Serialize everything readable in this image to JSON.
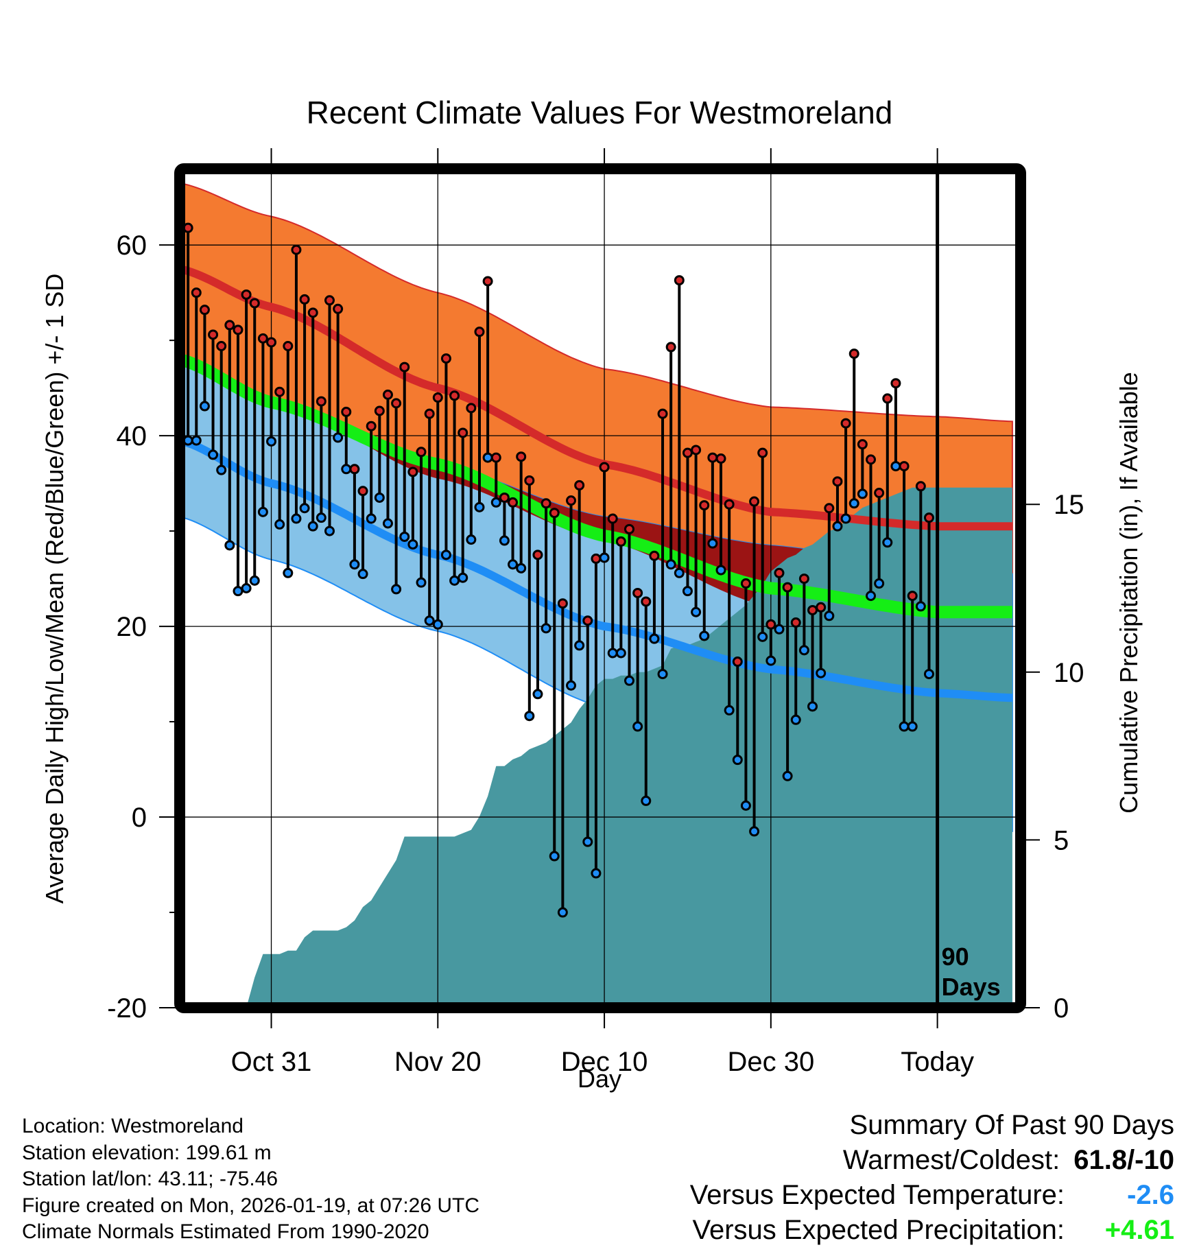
{
  "chart_data": {
    "type": "line",
    "title": "Recent Climate Values For Westmoreland",
    "xlabel": "Day",
    "ylabel_left": "Average Daily High/Low/Mean (Red/Blue/Green) +/- 1 SD",
    "ylabel_right": "Cumulative Precipitation (in), If Available",
    "xlim": [
      -91,
      10
    ],
    "ylim": [
      -20,
      68
    ],
    "ylim_right": [
      0,
      25
    ],
    "x_ticks": [
      {
        "x": -80,
        "label": "Oct 31"
      },
      {
        "x": -60,
        "label": "Nov 20"
      },
      {
        "x": -40,
        "label": "Dec 10"
      },
      {
        "x": -20,
        "label": "Dec 30"
      },
      {
        "x": 0,
        "label": "Today"
      }
    ],
    "y_ticks_left": [
      -20,
      0,
      20,
      40,
      60
    ],
    "y_ticks_right": [
      0,
      5,
      10,
      15
    ],
    "today_marker": {
      "x": 0,
      "label_line1": "90",
      "label_line2": "Days"
    },
    "normals": {
      "x": [
        -91,
        -80,
        -60,
        -40,
        -20,
        0,
        9
      ],
      "high_mean": [
        57.5,
        53.5,
        45.0,
        37.0,
        32.0,
        30.5,
        30.5
      ],
      "high_upper": [
        66.5,
        63.0,
        55.0,
        47.0,
        43.0,
        42.0,
        41.5
      ],
      "high_lower": [
        48.0,
        44.0,
        35.5,
        29.0,
        22.0,
        19.5,
        20.0
      ],
      "low_mean": [
        39.5,
        35.0,
        27.5,
        20.0,
        15.5,
        13.0,
        12.5
      ],
      "low_upper": [
        47.5,
        43.0,
        37.0,
        31.5,
        28.5,
        26.0,
        25.5
      ],
      "low_lower": [
        31.5,
        27.0,
        19.5,
        11.5,
        4.0,
        -1.0,
        -1.5
      ],
      "avg_mean": [
        48.0,
        43.5,
        37.0,
        29.5,
        24.0,
        21.5,
        21.5
      ]
    },
    "daily": {
      "x": [
        -90,
        -89,
        -88,
        -87,
        -86,
        -85,
        -84,
        -83,
        -82,
        -81,
        -80,
        -79,
        -78,
        -77,
        -76,
        -75,
        -74,
        -73,
        -72,
        -71,
        -70,
        -69,
        -68,
        -67,
        -66,
        -65,
        -64,
        -63,
        -62,
        -61,
        -60,
        -59,
        -58,
        -57,
        -56,
        -55,
        -54,
        -53,
        -52,
        -51,
        -50,
        -49,
        -48,
        -47,
        -46,
        -45,
        -44,
        -43,
        -42,
        -41,
        -40,
        -39,
        -38,
        -37,
        -36,
        -35,
        -34,
        -33,
        -32,
        -31,
        -30,
        -29,
        -28,
        -27,
        -26,
        -25,
        -24,
        -23,
        -22,
        -21,
        -20,
        -19,
        -18,
        -17,
        -16,
        -15,
        -14,
        -13,
        -12,
        -11,
        -10,
        -9,
        -8,
        -7,
        -6,
        -5,
        -4,
        -3,
        -2,
        -1
      ],
      "high": [
        61.8,
        55.0,
        53.2,
        50.6,
        49.4,
        51.6,
        51.1,
        54.8,
        53.9,
        50.2,
        49.8,
        44.6,
        49.4,
        59.5,
        54.3,
        52.9,
        43.6,
        54.2,
        53.3,
        42.5,
        36.5,
        34.2,
        41.0,
        42.6,
        44.3,
        43.4,
        47.2,
        36.2,
        38.3,
        42.3,
        44.0,
        48.1,
        44.2,
        40.3,
        42.9,
        50.9,
        56.2,
        37.7,
        33.5,
        33.0,
        37.8,
        35.3,
        27.5,
        32.9,
        31.9,
        22.4,
        33.2,
        34.8,
        20.6,
        27.1,
        36.7,
        31.3,
        28.9,
        30.2,
        23.5,
        22.6,
        27.4,
        42.3,
        49.3,
        56.3,
        38.2,
        38.5,
        32.7,
        37.7,
        37.6,
        32.8,
        16.3,
        24.5,
        33.1,
        38.2,
        20.2,
        25.6,
        24.1,
        20.4,
        25.0,
        21.7,
        22.0,
        32.4,
        35.2,
        41.3,
        48.6,
        39.1,
        37.5,
        34.0,
        43.9,
        45.5,
        36.8,
        23.2,
        34.7,
        31.4
      ],
      "low": [
        39.5,
        39.5,
        43.1,
        38.0,
        36.4,
        28.5,
        23.7,
        24.0,
        24.8,
        32.0,
        39.4,
        30.7,
        25.6,
        31.3,
        32.4,
        30.5,
        31.4,
        30.0,
        39.8,
        36.5,
        26.5,
        25.5,
        31.3,
        33.5,
        30.8,
        23.9,
        29.4,
        28.6,
        24.6,
        20.6,
        20.2,
        27.5,
        24.8,
        25.1,
        29.1,
        32.5,
        37.7,
        33.0,
        29.0,
        26.5,
        26.1,
        10.6,
        12.9,
        19.8,
        -4.1,
        -10.0,
        13.8,
        18.0,
        -2.6,
        -5.9,
        27.2,
        17.2,
        17.2,
        14.3,
        9.5,
        1.7,
        18.7,
        15.0,
        26.5,
        25.6,
        23.7,
        21.5,
        19.0,
        28.7,
        25.9,
        11.2,
        6.0,
        1.2,
        -1.5,
        18.9,
        16.4,
        19.7,
        4.3,
        10.2,
        17.5,
        11.6,
        15.1,
        21.1,
        30.5,
        31.3,
        32.9,
        33.9,
        23.2,
        24.5,
        28.8,
        36.8,
        9.5,
        9.5,
        22.1,
        15.0
      ]
    },
    "precip_cumulative": {
      "x": [
        -91,
        -83,
        -82,
        -81,
        -80,
        -79,
        -78,
        -77,
        -76,
        -75,
        -74,
        -73,
        -72,
        -71,
        -70,
        -69,
        -68,
        -67,
        -66,
        -65,
        -64,
        -63,
        -62,
        -61,
        -60,
        -59,
        -58,
        -57,
        -56,
        -55,
        -54,
        -53,
        -52,
        -51,
        -50,
        -49,
        -48,
        -47,
        -46,
        -45,
        -44,
        -43,
        -42,
        -41,
        -40,
        -39,
        -38,
        -37,
        -36,
        -35,
        -34,
        -33,
        -32,
        -31,
        -30,
        -29,
        -28,
        -27,
        -26,
        -25,
        -24,
        -23,
        -22,
        -21,
        -20,
        -19,
        -18,
        -17,
        -16,
        -15,
        -14,
        -13,
        -12,
        -11,
        -10,
        -9,
        -8,
        -7,
        -6,
        -5,
        -4,
        -3,
        -2,
        -1,
        0,
        9
      ],
      "values": [
        0,
        0,
        0.9,
        1.6,
        1.6,
        1.6,
        1.7,
        1.7,
        2.1,
        2.3,
        2.3,
        2.3,
        2.3,
        2.4,
        2.6,
        3.0,
        3.2,
        3.6,
        4.0,
        4.4,
        5.1,
        5.1,
        5.1,
        5.1,
        5.1,
        5.1,
        5.1,
        5.2,
        5.3,
        5.7,
        6.3,
        7.2,
        7.2,
        7.4,
        7.5,
        7.7,
        7.8,
        7.9,
        8.1,
        8.3,
        8.5,
        8.9,
        9.2,
        9.6,
        9.8,
        9.8,
        9.9,
        9.9,
        10.0,
        10.0,
        10.1,
        10.2,
        10.7,
        10.8,
        10.8,
        10.9,
        11.0,
        11.2,
        11.4,
        11.6,
        11.8,
        12.0,
        12.3,
        12.6,
        13.0,
        13.2,
        13.4,
        13.5,
        13.7,
        13.8,
        14.0,
        14.2,
        14.3,
        14.5,
        14.7,
        14.9,
        15.0,
        15.1,
        15.2,
        15.3,
        15.4,
        15.5,
        15.5,
        15.5,
        15.5,
        15.5
      ]
    },
    "colors": {
      "high_band": "#f47a30",
      "high_mean_line": "#d42a2a",
      "low_band": "#85c2e8",
      "low_mean_line": "#1f8df5",
      "overlap_band": "#9b1414",
      "mean_line": "#15ee15",
      "precip_fill": "#4898a0",
      "high_point": "#d42a2a",
      "low_point": "#1f8df5"
    }
  },
  "footer": {
    "location": "Location: Westmoreland",
    "elevation": "Station elevation: 199.61 m",
    "latlon": "Station lat/lon: 43.11; -75.46",
    "created": "Figure created on Mon, 2026-01-19, at 07:26 UTC",
    "normals": "Climate Normals Estimated From 1990-2020"
  },
  "summary": {
    "heading": "Summary Of Past 90 Days",
    "warmest_coldest_label": "Warmest/Coldest:",
    "warmest_coldest_value": "61.8/-10",
    "temp_label": "Versus Expected Temperature:",
    "temp_value": "-2.6",
    "temp_color": "#1f8df5",
    "precip_label": "Versus Expected Precipitation:",
    "precip_value": "+4.61",
    "precip_color": "#15ee15"
  }
}
